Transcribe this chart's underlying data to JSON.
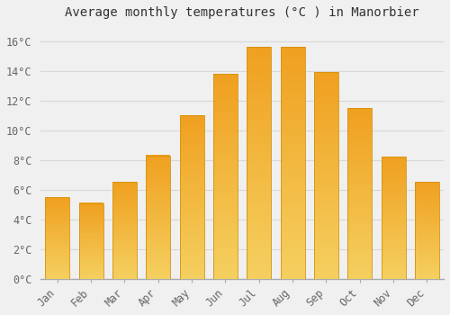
{
  "title": "Average monthly temperatures (°C ) in Manorbier",
  "months": [
    "Jan",
    "Feb",
    "Mar",
    "Apr",
    "May",
    "Jun",
    "Jul",
    "Aug",
    "Sep",
    "Oct",
    "Nov",
    "Dec"
  ],
  "values": [
    5.5,
    5.1,
    6.5,
    8.3,
    11.0,
    13.8,
    15.6,
    15.6,
    13.9,
    11.5,
    8.2,
    6.5
  ],
  "bar_color_top": "#F5A623",
  "bar_color_bottom": "#F5D060",
  "background_color": "#F0F0F0",
  "grid_color": "#D8D8D8",
  "ylim": [
    0,
    17.0
  ],
  "yticks": [
    0,
    2,
    4,
    6,
    8,
    10,
    12,
    14,
    16
  ],
  "ytick_labels": [
    "0°C",
    "2°C",
    "4°C",
    "6°C",
    "8°C",
    "10°C",
    "12°C",
    "14°C",
    "16°C"
  ],
  "title_fontsize": 10,
  "tick_fontsize": 8.5,
  "font_family": "monospace"
}
